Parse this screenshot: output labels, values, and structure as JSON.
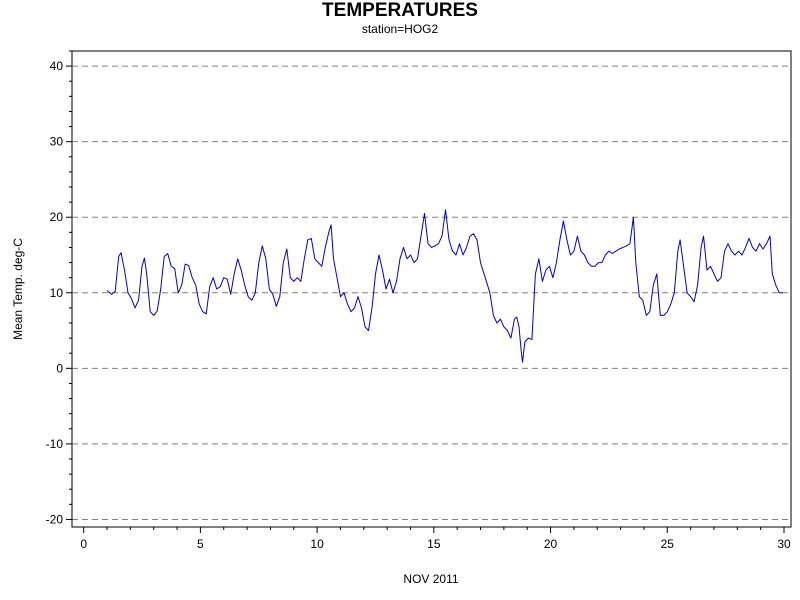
{
  "chart_data": {
    "type": "line",
    "title": "TEMPERATURES",
    "subtitle": "station=HOG2",
    "xlabel": "NOV 2011",
    "ylabel": "Mean Temp. deg-C",
    "xlim": [
      -0.5,
      30.3
    ],
    "ylim": [
      -21,
      42
    ],
    "xticks": [
      0,
      5,
      10,
      15,
      20,
      25,
      30
    ],
    "yticks": [
      -20,
      -10,
      0,
      10,
      20,
      30,
      40
    ],
    "grid": {
      "horizontal": true,
      "style": "dashed"
    },
    "series": [
      {
        "color": "#0000cc",
        "points": [
          [
            1.0,
            10.3
          ],
          [
            1.2,
            9.8
          ],
          [
            1.35,
            10.2
          ],
          [
            1.5,
            14.8
          ],
          [
            1.6,
            15.3
          ],
          [
            1.75,
            13.0
          ],
          [
            1.9,
            10.0
          ],
          [
            2.05,
            9.2
          ],
          [
            2.2,
            8.0
          ],
          [
            2.35,
            9.0
          ],
          [
            2.5,
            13.5
          ],
          [
            2.6,
            14.6
          ],
          [
            2.7,
            12.5
          ],
          [
            2.85,
            7.5
          ],
          [
            3.0,
            7.0
          ],
          [
            3.15,
            7.6
          ],
          [
            3.3,
            10.5
          ],
          [
            3.45,
            14.8
          ],
          [
            3.6,
            15.2
          ],
          [
            3.75,
            13.5
          ],
          [
            3.9,
            13.2
          ],
          [
            4.05,
            10.0
          ],
          [
            4.2,
            11.0
          ],
          [
            4.35,
            13.8
          ],
          [
            4.5,
            13.6
          ],
          [
            4.65,
            12.0
          ],
          [
            4.8,
            11.0
          ],
          [
            4.95,
            8.5
          ],
          [
            5.1,
            7.5
          ],
          [
            5.25,
            7.2
          ],
          [
            5.4,
            10.8
          ],
          [
            5.55,
            12.0
          ],
          [
            5.7,
            10.5
          ],
          [
            5.85,
            10.8
          ],
          [
            6.0,
            12.0
          ],
          [
            6.15,
            11.8
          ],
          [
            6.3,
            9.8
          ],
          [
            6.45,
            12.5
          ],
          [
            6.6,
            14.5
          ],
          [
            6.75,
            13.0
          ],
          [
            6.9,
            11.0
          ],
          [
            7.05,
            9.5
          ],
          [
            7.2,
            9.0
          ],
          [
            7.35,
            10.0
          ],
          [
            7.5,
            14.0
          ],
          [
            7.65,
            16.2
          ],
          [
            7.8,
            14.5
          ],
          [
            7.95,
            10.5
          ],
          [
            8.1,
            9.8
          ],
          [
            8.25,
            8.2
          ],
          [
            8.4,
            9.5
          ],
          [
            8.55,
            14.0
          ],
          [
            8.7,
            15.8
          ],
          [
            8.85,
            12.0
          ],
          [
            9.0,
            11.5
          ],
          [
            9.15,
            12.0
          ],
          [
            9.3,
            11.5
          ],
          [
            9.45,
            14.5
          ],
          [
            9.6,
            17.0
          ],
          [
            9.75,
            17.2
          ],
          [
            9.9,
            14.5
          ],
          [
            10.05,
            14.0
          ],
          [
            10.2,
            13.5
          ],
          [
            10.35,
            16.0
          ],
          [
            10.5,
            18.0
          ],
          [
            10.6,
            19.0
          ],
          [
            10.7,
            14.5
          ],
          [
            10.85,
            12.0
          ],
          [
            11.0,
            9.5
          ],
          [
            11.15,
            10.0
          ],
          [
            11.3,
            8.5
          ],
          [
            11.45,
            7.5
          ],
          [
            11.6,
            8.0
          ],
          [
            11.75,
            9.5
          ],
          [
            11.9,
            8.0
          ],
          [
            12.05,
            5.5
          ],
          [
            12.2,
            5.0
          ],
          [
            12.35,
            8.0
          ],
          [
            12.5,
            12.5
          ],
          [
            12.65,
            15.0
          ],
          [
            12.8,
            13.0
          ],
          [
            12.95,
            10.5
          ],
          [
            13.1,
            11.8
          ],
          [
            13.25,
            10.0
          ],
          [
            13.4,
            11.5
          ],
          [
            13.55,
            14.5
          ],
          [
            13.7,
            16.0
          ],
          [
            13.85,
            14.5
          ],
          [
            14.0,
            15.0
          ],
          [
            14.15,
            14.0
          ],
          [
            14.3,
            14.5
          ],
          [
            14.45,
            17.5
          ],
          [
            14.6,
            20.5
          ],
          [
            14.75,
            16.5
          ],
          [
            14.9,
            16.0
          ],
          [
            15.05,
            16.2
          ],
          [
            15.2,
            16.5
          ],
          [
            15.35,
            17.5
          ],
          [
            15.5,
            21.0
          ],
          [
            15.65,
            17.0
          ],
          [
            15.8,
            15.5
          ],
          [
            15.95,
            15.0
          ],
          [
            16.1,
            16.5
          ],
          [
            16.25,
            15.0
          ],
          [
            16.4,
            16.0
          ],
          [
            16.55,
            17.5
          ],
          [
            16.7,
            17.8
          ],
          [
            16.85,
            17.0
          ],
          [
            17.0,
            14.0
          ],
          [
            17.2,
            12.0
          ],
          [
            17.4,
            10.0
          ],
          [
            17.55,
            7.0
          ],
          [
            17.7,
            6.0
          ],
          [
            17.85,
            6.5
          ],
          [
            18.0,
            5.5
          ],
          [
            18.15,
            5.0
          ],
          [
            18.3,
            4.0
          ],
          [
            18.45,
            6.5
          ],
          [
            18.55,
            6.8
          ],
          [
            18.65,
            5.5
          ],
          [
            18.75,
            2.0
          ],
          [
            18.8,
            0.8
          ],
          [
            18.9,
            3.5
          ],
          [
            19.05,
            4.0
          ],
          [
            19.2,
            3.8
          ],
          [
            19.35,
            12.5
          ],
          [
            19.5,
            14.5
          ],
          [
            19.65,
            11.5
          ],
          [
            19.8,
            13.0
          ],
          [
            19.95,
            13.5
          ],
          [
            20.1,
            12.0
          ],
          [
            20.25,
            14.0
          ],
          [
            20.4,
            17.0
          ],
          [
            20.55,
            19.5
          ],
          [
            20.7,
            17.0
          ],
          [
            20.85,
            15.0
          ],
          [
            21.0,
            15.5
          ],
          [
            21.15,
            17.5
          ],
          [
            21.3,
            15.5
          ],
          [
            21.45,
            15.0
          ],
          [
            21.6,
            14.0
          ],
          [
            21.75,
            13.5
          ],
          [
            21.9,
            13.5
          ],
          [
            22.05,
            14.0
          ],
          [
            22.2,
            14.0
          ],
          [
            22.35,
            15.0
          ],
          [
            22.5,
            15.5
          ],
          [
            22.65,
            15.2
          ],
          [
            22.8,
            15.5
          ],
          [
            22.95,
            15.8
          ],
          [
            23.1,
            16.0
          ],
          [
            23.25,
            16.2
          ],
          [
            23.4,
            16.5
          ],
          [
            23.55,
            20.0
          ],
          [
            23.65,
            14.0
          ],
          [
            23.8,
            9.5
          ],
          [
            23.95,
            9.0
          ],
          [
            24.1,
            7.0
          ],
          [
            24.25,
            7.5
          ],
          [
            24.4,
            11.0
          ],
          [
            24.55,
            12.5
          ],
          [
            24.7,
            7.0
          ],
          [
            24.85,
            7.0
          ],
          [
            25.0,
            7.5
          ],
          [
            25.15,
            8.5
          ],
          [
            25.3,
            10.0
          ],
          [
            25.45,
            15.5
          ],
          [
            25.55,
            17.0
          ],
          [
            25.7,
            13.5
          ],
          [
            25.85,
            10.0
          ],
          [
            26.0,
            9.5
          ],
          [
            26.15,
            8.8
          ],
          [
            26.3,
            11.0
          ],
          [
            26.45,
            16.0
          ],
          [
            26.55,
            17.5
          ],
          [
            26.7,
            13.0
          ],
          [
            26.85,
            13.5
          ],
          [
            27.0,
            12.5
          ],
          [
            27.15,
            11.5
          ],
          [
            27.3,
            12.0
          ],
          [
            27.45,
            15.5
          ],
          [
            27.6,
            16.5
          ],
          [
            27.75,
            15.5
          ],
          [
            27.9,
            15.0
          ],
          [
            28.05,
            15.5
          ],
          [
            28.2,
            15.0
          ],
          [
            28.35,
            16.0
          ],
          [
            28.5,
            17.2
          ],
          [
            28.65,
            16.0
          ],
          [
            28.8,
            15.5
          ],
          [
            28.95,
            16.5
          ],
          [
            29.1,
            15.8
          ],
          [
            29.25,
            16.5
          ],
          [
            29.4,
            17.5
          ],
          [
            29.5,
            12.5
          ],
          [
            29.65,
            11.0
          ],
          [
            29.8,
            10.0
          ],
          [
            29.95,
            10.0
          ]
        ]
      }
    ]
  }
}
